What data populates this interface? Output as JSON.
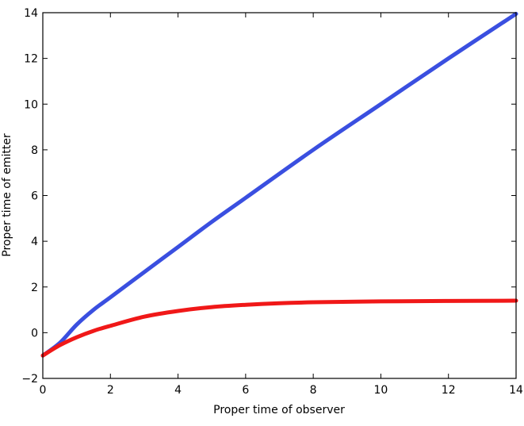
{
  "chart_data": {
    "type": "line",
    "title": "",
    "xlabel": "Proper time of observer",
    "ylabel": "Proper time of emitter",
    "xlim": [
      0,
      14
    ],
    "ylim": [
      -2,
      14
    ],
    "xticks": [
      0,
      2,
      4,
      6,
      8,
      10,
      12,
      14
    ],
    "yticks": [
      -2,
      0,
      2,
      4,
      6,
      8,
      10,
      12,
      14
    ],
    "grid": false,
    "series": [
      {
        "color": "#3a4fe0",
        "x": [
          0,
          0.5,
          1,
          1.5,
          2,
          3,
          4,
          5,
          6,
          8,
          10,
          12,
          14
        ],
        "y": [
          -1,
          -0.45,
          0.35,
          1.0,
          1.55,
          2.65,
          3.75,
          4.85,
          5.9,
          8.0,
          10.0,
          12.0,
          13.95
        ]
      },
      {
        "color": "#f01818",
        "x": [
          0,
          0.5,
          1,
          1.5,
          2,
          3,
          4,
          5,
          6,
          7,
          8,
          10,
          12,
          14
        ],
        "y": [
          -1,
          -0.55,
          -0.2,
          0.08,
          0.3,
          0.7,
          0.95,
          1.12,
          1.22,
          1.29,
          1.33,
          1.37,
          1.39,
          1.4
        ]
      }
    ]
  }
}
